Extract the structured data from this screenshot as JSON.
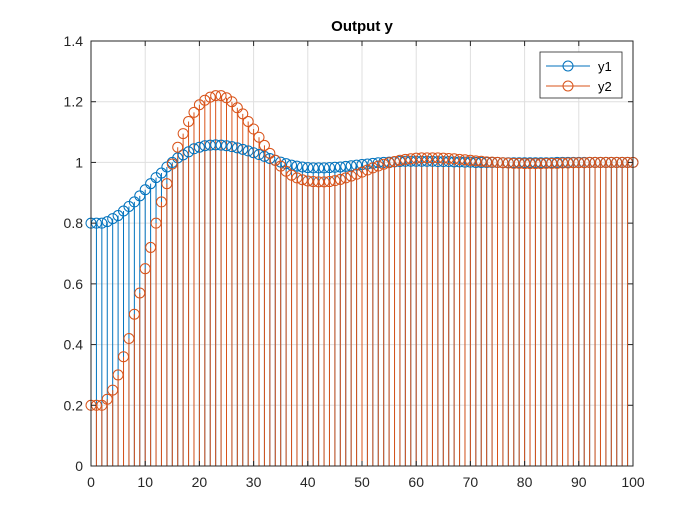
{
  "chart_data": {
    "type": "stem",
    "title": "Output y",
    "xlabel": "",
    "ylabel": "",
    "xlim": [
      0,
      100
    ],
    "ylim": [
      0,
      1.4
    ],
    "xticks": [
      "0",
      "10",
      "20",
      "30",
      "40",
      "50",
      "60",
      "70",
      "80",
      "90",
      "100"
    ],
    "yticks": [
      "0",
      "0.2",
      "0.4",
      "0.6",
      "0.8",
      "1",
      "1.2",
      "1.4"
    ],
    "grid": true,
    "legend_position": "top-right",
    "series": [
      {
        "name": "y1",
        "color": "#0072BD",
        "x": [
          0,
          1,
          2,
          3,
          4,
          5,
          6,
          7,
          8,
          9,
          10,
          11,
          12,
          13,
          14,
          15,
          16,
          17,
          18,
          19,
          20,
          21,
          22,
          23,
          24,
          25,
          26,
          27,
          28,
          29,
          30,
          31,
          32,
          33,
          34,
          35,
          36,
          37,
          38,
          39,
          40,
          41,
          42,
          43,
          44,
          45,
          46,
          47,
          48,
          49,
          50,
          51,
          52,
          53,
          54,
          55,
          56,
          57,
          58,
          59,
          60,
          61,
          62,
          63,
          64,
          65,
          66,
          67,
          68,
          69,
          70,
          71,
          72,
          73,
          74,
          75,
          76,
          77,
          78,
          79,
          80,
          81,
          82,
          83,
          84,
          85,
          86,
          87,
          88,
          89,
          90,
          91,
          92,
          93,
          94,
          95,
          96,
          97,
          98,
          99,
          100
        ],
        "values": [
          0.8,
          0.8,
          0.8,
          0.805,
          0.815,
          0.825,
          0.84,
          0.855,
          0.87,
          0.89,
          0.91,
          0.93,
          0.95,
          0.965,
          0.985,
          1.0,
          1.015,
          1.025,
          1.035,
          1.045,
          1.05,
          1.055,
          1.057,
          1.058,
          1.057,
          1.055,
          1.052,
          1.048,
          1.043,
          1.038,
          1.032,
          1.026,
          1.02,
          1.013,
          1.007,
          1.001,
          0.996,
          0.991,
          0.988,
          0.985,
          0.983,
          0.982,
          0.982,
          0.982,
          0.983,
          0.984,
          0.985,
          0.987,
          0.989,
          0.991,
          0.993,
          0.995,
          0.997,
          0.999,
          1.0,
          1.001,
          1.002,
          1.003,
          1.004,
          1.004,
          1.004,
          1.004,
          1.004,
          1.004,
          1.003,
          1.003,
          1.003,
          1.002,
          1.002,
          1.001,
          1.001,
          1.0,
          1.0,
          1.0,
          1.0,
          1.0,
          0.999,
          0.999,
          0.999,
          0.999,
          0.999,
          0.999,
          0.999,
          0.999,
          0.999,
          0.999,
          1.0,
          1.0,
          1.0,
          1.0,
          1.0,
          1.0,
          1.0,
          1.0,
          1.0,
          1.0,
          1.0,
          1.0,
          1.0,
          1.0,
          1.0
        ]
      },
      {
        "name": "y2",
        "color": "#D95319",
        "x": [
          0,
          1,
          2,
          3,
          4,
          5,
          6,
          7,
          8,
          9,
          10,
          11,
          12,
          13,
          14,
          15,
          16,
          17,
          18,
          19,
          20,
          21,
          22,
          23,
          24,
          25,
          26,
          27,
          28,
          29,
          30,
          31,
          32,
          33,
          34,
          35,
          36,
          37,
          38,
          39,
          40,
          41,
          42,
          43,
          44,
          45,
          46,
          47,
          48,
          49,
          50,
          51,
          52,
          53,
          54,
          55,
          56,
          57,
          58,
          59,
          60,
          61,
          62,
          63,
          64,
          65,
          66,
          67,
          68,
          69,
          70,
          71,
          72,
          73,
          74,
          75,
          76,
          77,
          78,
          79,
          80,
          81,
          82,
          83,
          84,
          85,
          86,
          87,
          88,
          89,
          90,
          91,
          92,
          93,
          94,
          95,
          96,
          97,
          98,
          99,
          100
        ],
        "values": [
          0.2,
          0.2,
          0.2,
          0.22,
          0.25,
          0.3,
          0.36,
          0.42,
          0.5,
          0.57,
          0.65,
          0.72,
          0.8,
          0.87,
          0.93,
          0.995,
          1.05,
          1.095,
          1.135,
          1.165,
          1.19,
          1.205,
          1.215,
          1.22,
          1.22,
          1.213,
          1.2,
          1.18,
          1.16,
          1.135,
          1.11,
          1.083,
          1.056,
          1.03,
          1.007,
          0.988,
          0.971,
          0.958,
          0.949,
          0.943,
          0.939,
          0.937,
          0.936,
          0.936,
          0.937,
          0.94,
          0.944,
          0.949,
          0.955,
          0.961,
          0.968,
          0.975,
          0.982,
          0.988,
          0.994,
          0.999,
          1.003,
          1.007,
          1.01,
          1.012,
          1.014,
          1.015,
          1.015,
          1.015,
          1.015,
          1.014,
          1.013,
          1.012,
          1.01,
          1.009,
          1.007,
          1.005,
          1.004,
          1.002,
          1.001,
          1.0,
          0.999,
          0.998,
          0.997,
          0.997,
          0.996,
          0.996,
          0.996,
          0.996,
          0.997,
          0.997,
          0.997,
          0.998,
          0.998,
          0.999,
          0.999,
          0.999,
          1.0,
          1.0,
          1.0,
          1.0,
          1.0,
          1.0,
          1.0,
          1.0,
          1.0
        ]
      }
    ]
  }
}
